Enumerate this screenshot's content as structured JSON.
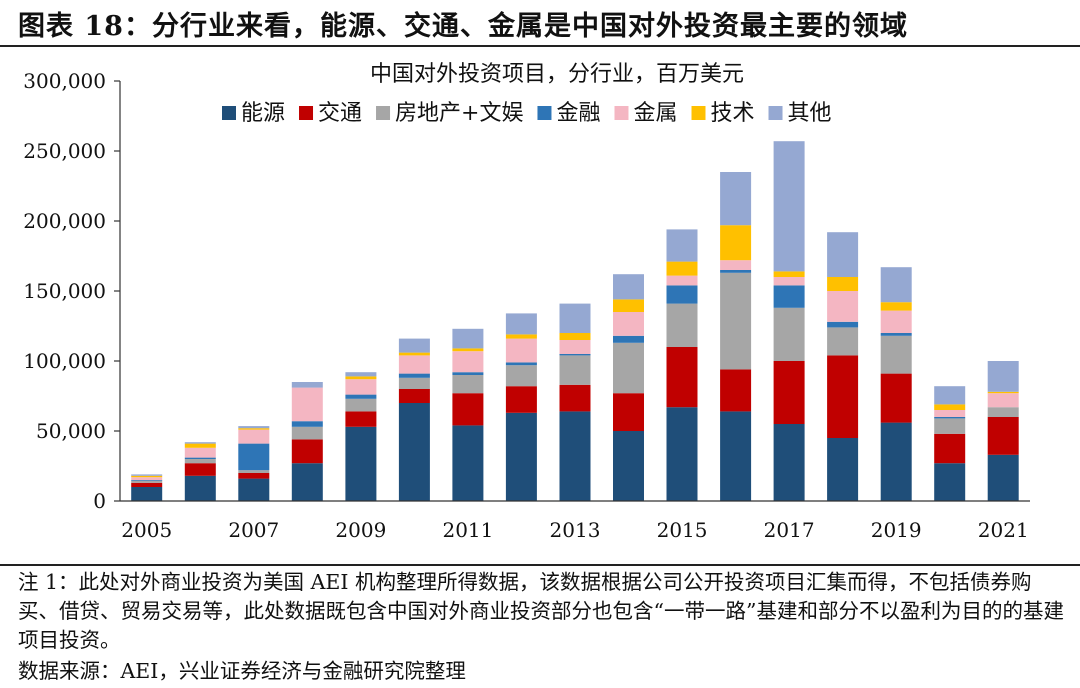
{
  "header": {
    "title": "图表 18：分行业来看，能源、交通、金属是中国对外投资最主要的领域"
  },
  "footer": {
    "note": "注 1：此处对外商业投资为美国 AEI 机构整理所得数据，该数据根据公司公开投资项目汇集而得，不包括债券购买、借贷、贸易交易等，此处数据既包含中国对外商业投资部分也包含“一带一路”基建和部分不以盈利为目的的基建项目投资。",
    "source": "数据来源：AEI，兴业证券经济与金融研究院整理"
  },
  "chart_data": {
    "type": "bar",
    "stacked": true,
    "title": "中国对外投资项目，分行业，百万美元",
    "xlabel": "",
    "ylabel": "",
    "ylim": [
      0,
      300000
    ],
    "yticks": [
      0,
      50000,
      100000,
      150000,
      200000,
      250000,
      300000
    ],
    "ytick_labels": [
      "0",
      "50,000",
      "100,000",
      "150,000",
      "200,000",
      "250,000",
      "300,000"
    ],
    "categories": [
      "2005",
      "2006",
      "2007",
      "2008",
      "2009",
      "2010",
      "2011",
      "2012",
      "2013",
      "2014",
      "2015",
      "2016",
      "2017",
      "2018",
      "2019",
      "2020",
      "2021"
    ],
    "xtick_labels": [
      "2005",
      "",
      "2007",
      "",
      "2009",
      "",
      "2011",
      "",
      "2013",
      "",
      "2015",
      "",
      "2017",
      "",
      "2019",
      "",
      "2021"
    ],
    "legend_position": "top",
    "series": [
      {
        "name": "能源",
        "color": "#1f4e79",
        "values": [
          10000,
          18000,
          16000,
          27000,
          53000,
          70000,
          54000,
          63000,
          64000,
          50000,
          67000,
          64000,
          55000,
          45000,
          56000,
          27000,
          33000
        ]
      },
      {
        "name": "交通",
        "color": "#c00000",
        "values": [
          3000,
          9000,
          4000,
          17000,
          11000,
          10000,
          23000,
          19000,
          19000,
          27000,
          43000,
          30000,
          45000,
          59000,
          35000,
          21000,
          27000
        ]
      },
      {
        "name": "房地产+文娱",
        "color": "#a6a6a6",
        "values": [
          1500,
          3000,
          2000,
          9000,
          9000,
          8000,
          13000,
          15000,
          21000,
          36000,
          31000,
          69000,
          38000,
          20000,
          27000,
          11000,
          7000
        ]
      },
      {
        "name": "金融",
        "color": "#2e75b6",
        "values": [
          500,
          1000,
          19000,
          4000,
          3000,
          3000,
          2000,
          2000,
          1000,
          5000,
          13000,
          2000,
          16000,
          4000,
          2000,
          1000,
          0
        ]
      },
      {
        "name": "金属",
        "color": "#f4b6c2",
        "values": [
          2000,
          7000,
          10000,
          24000,
          11000,
          13000,
          15000,
          17000,
          10000,
          17000,
          7000,
          7000,
          6000,
          22000,
          16000,
          5000,
          10000
        ]
      },
      {
        "name": "技术",
        "color": "#ffc000",
        "values": [
          1000,
          3000,
          1000,
          0,
          2000,
          2000,
          2000,
          3000,
          5000,
          9000,
          10000,
          25000,
          4000,
          10000,
          6000,
          4000,
          1000
        ]
      },
      {
        "name": "其他",
        "color": "#95a8d2",
        "values": [
          1000,
          1000,
          1500,
          4000,
          3000,
          10000,
          14000,
          15000,
          21000,
          18000,
          23000,
          38000,
          93000,
          32000,
          25000,
          13000,
          22000
        ]
      }
    ]
  }
}
